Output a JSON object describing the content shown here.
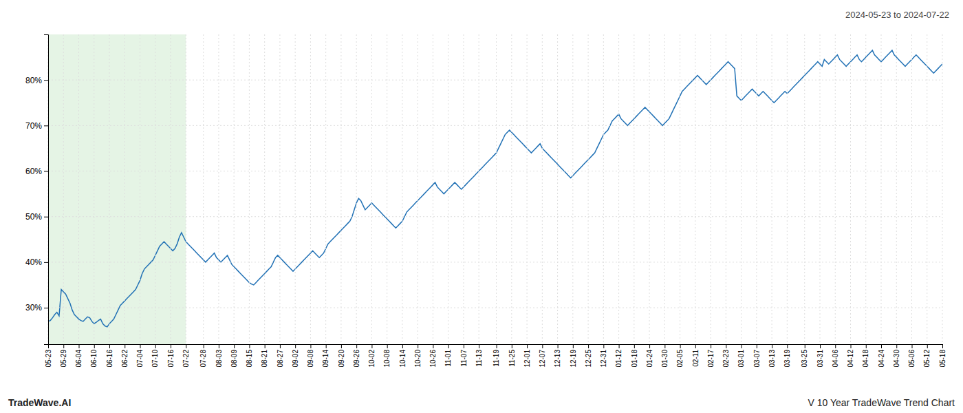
{
  "chart_data": {
    "type": "line",
    "annotations": [
      "2024-05-23 to 2024-07-22",
      "TradeWave.AI",
      "V 10 Year TradeWave Trend Chart"
    ],
    "color": "#2171b5",
    "grid": true,
    "ylim": [
      22,
      90
    ],
    "yticks": [
      {
        "value": 30,
        "label": "30%"
      },
      {
        "value": 40,
        "label": "40%"
      },
      {
        "value": 50,
        "label": "50%"
      },
      {
        "value": 60,
        "label": "60%"
      },
      {
        "value": 70,
        "label": "70%"
      },
      {
        "value": 80,
        "label": "80%"
      }
    ],
    "highlight": {
      "from": "05-23",
      "to": "07-22",
      "color": "#d4ecd4"
    },
    "categories": [
      "05-23",
      null,
      null,
      null,
      null,
      null,
      null,
      "05-29",
      null,
      null,
      null,
      null,
      null,
      null,
      "06-04",
      null,
      null,
      null,
      null,
      null,
      null,
      "06-10",
      null,
      null,
      null,
      null,
      null,
      null,
      "06-16",
      null,
      null,
      null,
      null,
      null,
      null,
      "06-22",
      null,
      null,
      null,
      null,
      null,
      null,
      "07-04",
      null,
      null,
      null,
      null,
      null,
      null,
      "07-10",
      null,
      null,
      null,
      null,
      null,
      null,
      "07-16",
      null,
      null,
      null,
      null,
      null,
      null,
      "07-22",
      null,
      null,
      null,
      null,
      null,
      null,
      null,
      "07-28",
      null,
      null,
      null,
      null,
      null,
      null,
      "08-03",
      null,
      null,
      null,
      null,
      null,
      null,
      "08-09",
      null,
      null,
      null,
      null,
      null,
      null,
      "08-15",
      null,
      null,
      null,
      null,
      null,
      null,
      "08-21",
      null,
      null,
      null,
      null,
      null,
      null,
      "08-27",
      null,
      null,
      null,
      null,
      null,
      null,
      "09-02",
      null,
      null,
      null,
      null,
      null,
      null,
      "09-08",
      null,
      null,
      null,
      null,
      null,
      null,
      "09-14",
      null,
      null,
      null,
      null,
      null,
      null,
      "09-20",
      null,
      null,
      null,
      null,
      null,
      null,
      "09-26",
      null,
      null,
      null,
      null,
      null,
      null,
      "10-02",
      null,
      null,
      null,
      null,
      null,
      null,
      "10-08",
      null,
      null,
      null,
      null,
      null,
      null,
      "10-14",
      null,
      null,
      null,
      null,
      null,
      null,
      "10-20",
      null,
      null,
      null,
      null,
      null,
      null,
      "10-26",
      null,
      null,
      null,
      null,
      null,
      null,
      "11-01",
      null,
      null,
      null,
      null,
      null,
      null,
      "11-07",
      null,
      null,
      null,
      null,
      null,
      null,
      "11-13",
      null,
      null,
      null,
      null,
      null,
      null,
      null,
      "11-19",
      null,
      null,
      null,
      null,
      null,
      null,
      "11-25",
      null,
      null,
      null,
      null,
      null,
      null,
      "12-01",
      null,
      null,
      null,
      null,
      null,
      null,
      "12-07",
      null,
      null,
      null,
      null,
      null,
      null,
      "12-13",
      null,
      null,
      null,
      null,
      null,
      null,
      "12-19",
      null,
      null,
      null,
      null,
      null,
      null,
      "12-25",
      null,
      null,
      null,
      null,
      null,
      null,
      "12-31",
      null,
      null,
      null,
      null,
      null,
      null,
      "01-12",
      null,
      null,
      null,
      null,
      null,
      null,
      "01-18",
      null,
      null,
      null,
      null,
      null,
      null,
      "01-24",
      null,
      null,
      null,
      null,
      null,
      null,
      "01-30",
      null,
      null,
      null,
      null,
      null,
      null,
      "02-05",
      null,
      null,
      null,
      null,
      null,
      null,
      "02-11",
      null,
      null,
      null,
      null,
      null,
      null,
      "02-17",
      null,
      null,
      null,
      null,
      null,
      null,
      "02-23",
      null,
      null,
      null,
      null,
      null,
      null,
      "03-01",
      null,
      null,
      null,
      null,
      null,
      null,
      "03-07",
      null,
      null,
      null,
      null,
      null,
      null,
      "03-13",
      null,
      null,
      null,
      null,
      null,
      null,
      "03-19",
      null,
      null,
      null,
      null,
      null,
      null,
      null,
      "03-25",
      null,
      null,
      null,
      null,
      null,
      null,
      "03-31",
      null,
      null,
      null,
      null,
      null,
      null,
      "04-06",
      null,
      null,
      null,
      null,
      null,
      null,
      "04-12",
      null,
      null,
      null,
      null,
      null,
      null,
      "04-18",
      null,
      null,
      null,
      null,
      null,
      null,
      "04-24",
      null,
      null,
      null,
      null,
      null,
      null,
      "04-30",
      null,
      null,
      null,
      null,
      null,
      null,
      "05-06",
      null,
      null,
      null,
      null,
      null,
      null,
      "05-12",
      null,
      null,
      null,
      null,
      null,
      null,
      "05-18"
    ],
    "values": [
      27.0,
      27.2,
      27.8,
      28.5,
      29.0,
      28.2,
      34.0,
      33.5,
      33.0,
      32.0,
      31.0,
      29.5,
      28.5,
      28.0,
      27.5,
      27.2,
      27.0,
      27.5,
      28.0,
      27.8,
      27.0,
      26.5,
      26.8,
      27.2,
      27.5,
      26.5,
      26.0,
      25.8,
      26.5,
      27.0,
      27.5,
      28.5,
      29.5,
      30.5,
      31.0,
      31.5,
      32.0,
      32.5,
      33.0,
      33.5,
      34.0,
      35.0,
      36.0,
      37.5,
      38.5,
      39.0,
      39.5,
      40.0,
      40.5,
      41.5,
      42.5,
      43.5,
      44.0,
      44.5,
      44.0,
      43.5,
      43.0,
      42.5,
      43.0,
      44.0,
      45.5,
      46.5,
      45.5,
      44.5,
      44.0,
      43.5,
      43.0,
      42.5,
      42.0,
      41.5,
      41.0,
      40.5,
      40.0,
      40.5,
      41.0,
      41.5,
      42.0,
      41.0,
      40.5,
      40.0,
      40.5,
      41.0,
      41.5,
      40.5,
      39.5,
      39.0,
      38.5,
      38.0,
      37.5,
      37.0,
      36.5,
      36.0,
      35.5,
      35.2,
      35.0,
      35.5,
      36.0,
      36.5,
      37.0,
      37.5,
      38.0,
      38.5,
      39.0,
      40.0,
      41.0,
      41.5,
      41.0,
      40.5,
      40.0,
      39.5,
      39.0,
      38.5,
      38.0,
      38.5,
      39.0,
      39.5,
      40.0,
      40.5,
      41.0,
      41.5,
      42.0,
      42.5,
      42.0,
      41.5,
      41.0,
      41.5,
      42.0,
      43.0,
      44.0,
      44.5,
      45.0,
      45.5,
      46.0,
      46.5,
      47.0,
      47.5,
      48.0,
      48.5,
      49.0,
      50.0,
      51.5,
      53.0,
      54.0,
      53.5,
      52.5,
      51.5,
      52.0,
      52.5,
      53.0,
      52.5,
      52.0,
      51.5,
      51.0,
      50.5,
      50.0,
      49.5,
      49.0,
      48.5,
      48.0,
      47.5,
      48.0,
      48.5,
      49.0,
      50.0,
      51.0,
      51.5,
      52.0,
      52.5,
      53.0,
      53.5,
      54.0,
      54.5,
      55.0,
      55.5,
      56.0,
      56.5,
      57.0,
      57.5,
      56.5,
      56.0,
      55.5,
      55.0,
      55.5,
      56.0,
      56.5,
      57.0,
      57.5,
      57.0,
      56.5,
      56.0,
      56.5,
      57.0,
      57.5,
      58.0,
      58.5,
      59.0,
      59.5,
      60.0,
      60.5,
      61.0,
      61.5,
      62.0,
      62.5,
      63.0,
      63.5,
      64.0,
      65.0,
      66.0,
      67.0,
      68.0,
      68.5,
      69.0,
      68.5,
      68.0,
      67.5,
      67.0,
      66.5,
      66.0,
      65.5,
      65.0,
      64.5,
      64.0,
      64.5,
      65.0,
      65.5,
      66.0,
      65.0,
      64.5,
      64.0,
      63.5,
      63.0,
      62.5,
      62.0,
      61.5,
      61.0,
      60.5,
      60.0,
      59.5,
      59.0,
      58.5,
      59.0,
      59.5,
      60.0,
      60.5,
      61.0,
      61.5,
      62.0,
      62.5,
      63.0,
      63.5,
      64.0,
      65.0,
      66.0,
      67.0,
      68.0,
      68.5,
      69.0,
      70.0,
      71.0,
      71.5,
      72.0,
      72.5,
      71.5,
      71.0,
      70.5,
      70.0,
      70.5,
      71.0,
      71.5,
      72.0,
      72.5,
      73.0,
      73.5,
      74.0,
      73.5,
      73.0,
      72.5,
      72.0,
      71.5,
      71.0,
      70.5,
      70.0,
      70.5,
      71.0,
      71.5,
      72.5,
      73.5,
      74.5,
      75.5,
      76.5,
      77.5,
      78.0,
      78.5,
      79.0,
      79.5,
      80.0,
      80.5,
      81.0,
      80.5,
      80.0,
      79.5,
      79.0,
      79.5,
      80.0,
      80.5,
      81.0,
      81.5,
      82.0,
      82.5,
      83.0,
      83.5,
      84.0,
      83.5,
      83.0,
      82.5,
      76.5,
      76.0,
      75.5,
      76.0,
      76.5,
      77.0,
      77.5,
      78.0,
      77.5,
      77.0,
      76.5,
      77.0,
      77.5,
      77.0,
      76.5,
      76.0,
      75.5,
      75.0,
      75.5,
      76.0,
      76.5,
      77.0,
      77.5,
      77.0,
      77.5,
      78.0,
      78.5,
      79.0,
      79.5,
      80.0,
      80.5,
      81.0,
      81.5,
      82.0,
      82.5,
      83.0,
      83.5,
      84.0,
      83.5,
      83.0,
      84.5,
      84.0,
      83.5,
      84.0,
      84.5,
      85.0,
      85.5,
      84.5,
      84.0,
      83.5,
      83.0,
      83.5,
      84.0,
      84.5,
      85.0,
      85.5,
      84.5,
      84.0,
      84.5,
      85.0,
      85.5,
      86.0,
      86.5,
      85.5,
      85.0,
      84.5,
      84.0,
      84.5,
      85.0,
      85.5,
      86.0,
      86.5,
      85.5,
      85.0,
      84.5,
      84.0,
      83.5,
      83.0,
      83.5,
      84.0,
      84.5,
      85.0,
      85.5,
      85.0,
      84.5,
      84.0,
      83.5,
      83.0,
      82.5,
      82.0,
      81.5,
      82.0,
      82.5,
      83.0,
      83.5
    ]
  }
}
